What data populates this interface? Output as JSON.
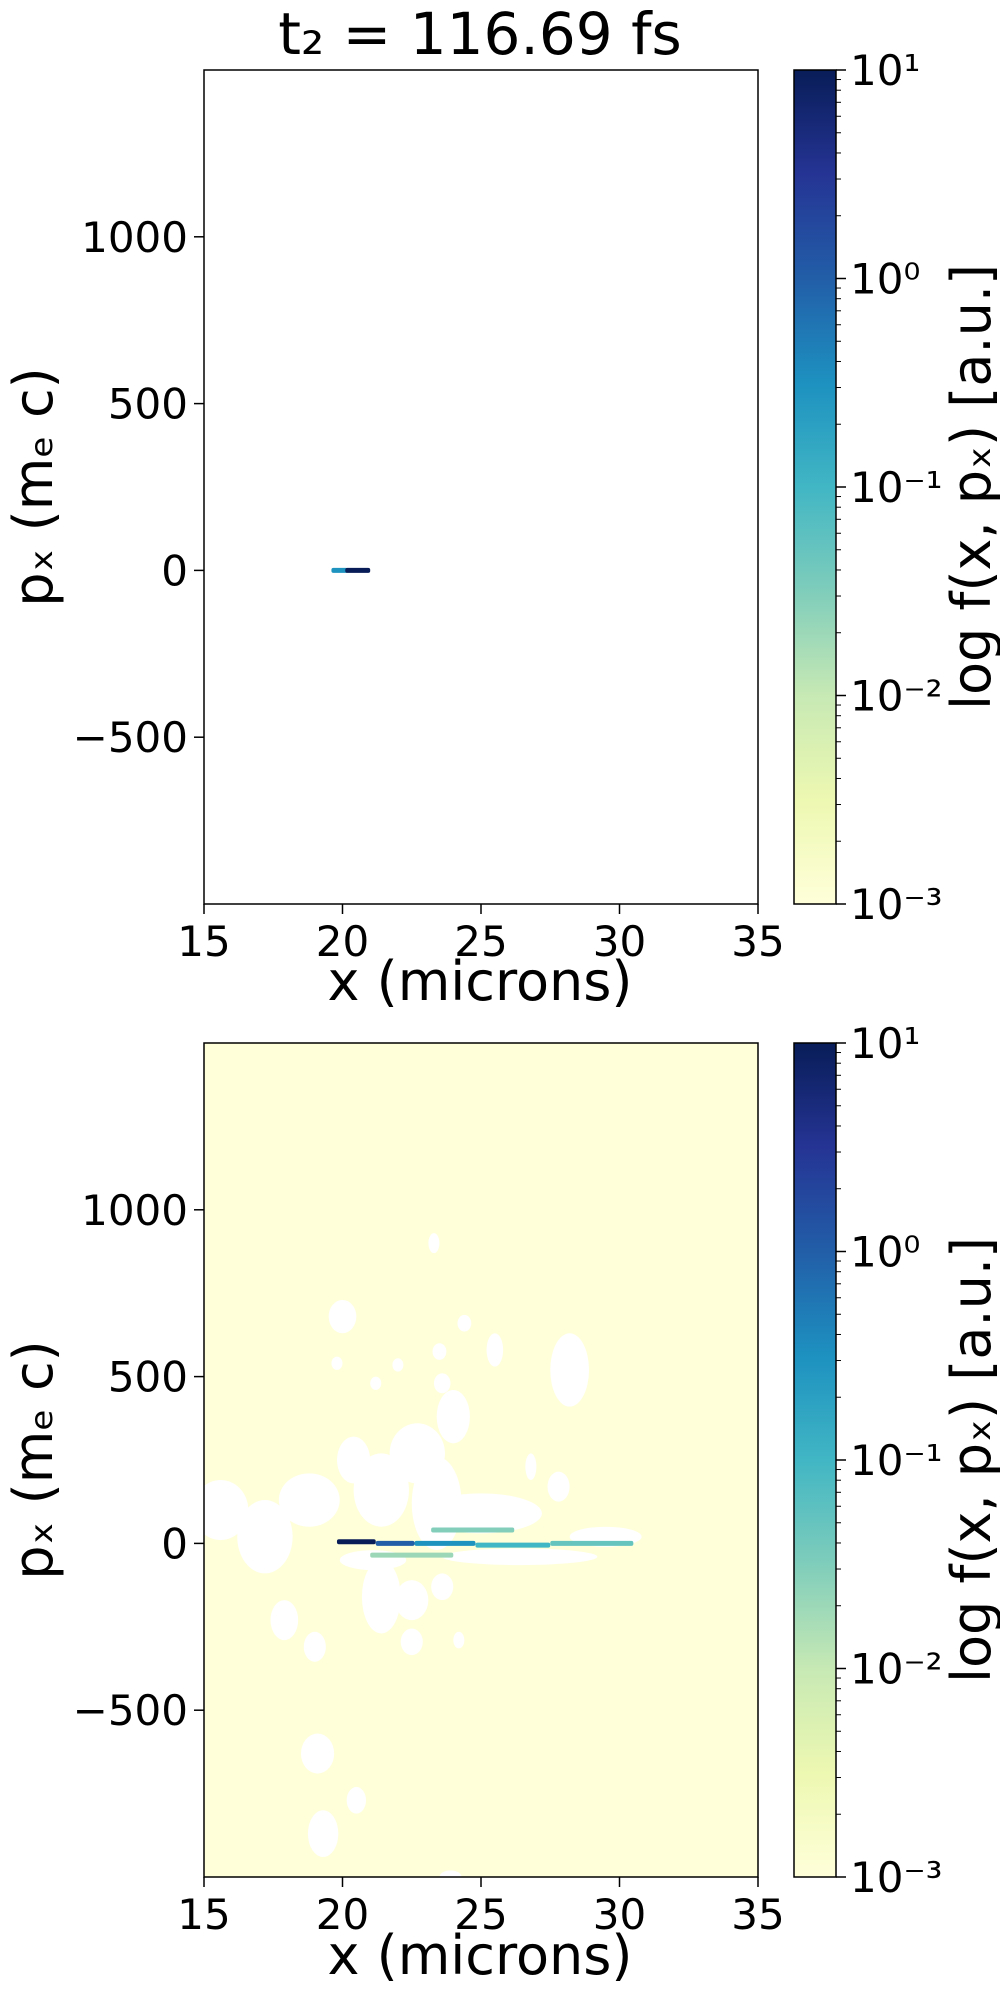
{
  "figure_title": "t₂ = 116.69 fs",
  "colors": {
    "background": "#ffffff",
    "frame": "#000000",
    "cmap": [
      "#081d58",
      "#253494",
      "#225ea8",
      "#1d91c0",
      "#41b6c4",
      "#7fcdbb",
      "#c7e9b4",
      "#edf8b1",
      "#ffffd9"
    ]
  },
  "chart_data": [
    {
      "type": "heatmap",
      "title": "t₂ = 116.69 fs",
      "xlabel": "x (microns)",
      "ylabel": "pₓ (mₑ c)",
      "colorbar_label": "log f(x, pₓ) [a.u.]",
      "colorbar_scale": "log",
      "colorbar_range": [
        0.001,
        10
      ],
      "colorbar_ticks": [
        "10¹",
        "10⁰",
        "10⁻¹",
        "10⁻²",
        "10⁻³"
      ],
      "xlim": [
        15,
        35
      ],
      "ylim": [
        -1000,
        1500
      ],
      "xticks": [
        "15",
        "20",
        "25",
        "30",
        "35"
      ],
      "yticks": [
        "−500",
        "0",
        "500",
        "1000"
      ],
      "background_fill": "none",
      "grid": false,
      "features": [
        {
          "kind": "streak",
          "x0": 19.6,
          "x1": 20.2,
          "y": 0,
          "level": 0.3
        },
        {
          "kind": "streak",
          "x0": 20.1,
          "x1": 21.0,
          "y": 0,
          "level": 10
        }
      ]
    },
    {
      "type": "heatmap",
      "title": "",
      "xlabel": "x (microns)",
      "ylabel": "pₓ (mₑ c)",
      "colorbar_label": "log f(x, pₓ) [a.u.]",
      "colorbar_scale": "log",
      "colorbar_range": [
        0.001,
        10
      ],
      "colorbar_ticks": [
        "10¹",
        "10⁰",
        "10⁻¹",
        "10⁻²",
        "10⁻³"
      ],
      "xlim": [
        15,
        35
      ],
      "ylim": [
        -1000,
        1500
      ],
      "xticks": [
        "15",
        "20",
        "25",
        "30",
        "35"
      ],
      "yticks": [
        "−500",
        "0",
        "500",
        "1000"
      ],
      "background_fill": 0.001,
      "grid": false,
      "features": [
        {
          "kind": "blob",
          "x": 15.6,
          "y": 100,
          "rx": 1.0,
          "ry": 90
        },
        {
          "kind": "blob",
          "x": 17.2,
          "y": 20,
          "rx": 1.0,
          "ry": 110
        },
        {
          "kind": "blob",
          "x": 17.9,
          "y": -230,
          "rx": 0.5,
          "ry": 60
        },
        {
          "kind": "blob",
          "x": 19.0,
          "y": -310,
          "rx": 0.4,
          "ry": 45
        },
        {
          "kind": "blob",
          "x": 18.8,
          "y": 130,
          "rx": 1.1,
          "ry": 80
        },
        {
          "kind": "blob",
          "x": 20.4,
          "y": 250,
          "rx": 0.6,
          "ry": 70
        },
        {
          "kind": "blob",
          "x": 21.4,
          "y": 160,
          "rx": 1.0,
          "ry": 110
        },
        {
          "kind": "blob",
          "x": 22.7,
          "y": 270,
          "rx": 1.0,
          "ry": 90
        },
        {
          "kind": "blob",
          "x": 23.4,
          "y": 120,
          "rx": 0.9,
          "ry": 140
        },
        {
          "kind": "blob",
          "x": 24.0,
          "y": 380,
          "rx": 0.6,
          "ry": 80
        },
        {
          "kind": "blob",
          "x": 24.4,
          "y": 660,
          "rx": 0.25,
          "ry": 25
        },
        {
          "kind": "blob",
          "x": 23.5,
          "y": 575,
          "rx": 0.25,
          "ry": 25
        },
        {
          "kind": "blob",
          "x": 23.6,
          "y": 480,
          "rx": 0.3,
          "ry": 30
        },
        {
          "kind": "blob",
          "x": 22.0,
          "y": 535,
          "rx": 0.2,
          "ry": 20
        },
        {
          "kind": "blob",
          "x": 21.2,
          "y": 480,
          "rx": 0.2,
          "ry": 20
        },
        {
          "kind": "blob",
          "x": 23.3,
          "y": 900,
          "rx": 0.2,
          "ry": 30
        },
        {
          "kind": "blob",
          "x": 25.5,
          "y": 580,
          "rx": 0.3,
          "ry": 50
        },
        {
          "kind": "blob",
          "x": 28.2,
          "y": 520,
          "rx": 0.7,
          "ry": 110
        },
        {
          "kind": "blob",
          "x": 26.8,
          "y": 230,
          "rx": 0.2,
          "ry": 40
        },
        {
          "kind": "blob",
          "x": 27.8,
          "y": 170,
          "rx": 0.4,
          "ry": 45
        },
        {
          "kind": "blob",
          "x": 20.0,
          "y": 680,
          "rx": 0.5,
          "ry": 50
        },
        {
          "kind": "blob",
          "x": 19.8,
          "y": 540,
          "rx": 0.2,
          "ry": 20
        },
        {
          "kind": "blob",
          "x": 25.0,
          "y": 90,
          "rx": 2.2,
          "ry": 60
        },
        {
          "kind": "blob",
          "x": 29.5,
          "y": 20,
          "rx": 1.3,
          "ry": 30
        },
        {
          "kind": "blob",
          "x": 21.4,
          "y": -160,
          "rx": 0.7,
          "ry": 110
        },
        {
          "kind": "blob",
          "x": 22.5,
          "y": -170,
          "rx": 0.6,
          "ry": 60
        },
        {
          "kind": "blob",
          "x": 23.6,
          "y": -130,
          "rx": 0.4,
          "ry": 40
        },
        {
          "kind": "blob",
          "x": 22.5,
          "y": -295,
          "rx": 0.4,
          "ry": 40
        },
        {
          "kind": "blob",
          "x": 24.2,
          "y": -290,
          "rx": 0.2,
          "ry": 25
        },
        {
          "kind": "blob",
          "x": 19.1,
          "y": -630,
          "rx": 0.6,
          "ry": 60
        },
        {
          "kind": "blob",
          "x": 19.3,
          "y": -870,
          "rx": 0.55,
          "ry": 70
        },
        {
          "kind": "blob",
          "x": 20.5,
          "y": -770,
          "rx": 0.35,
          "ry": 40
        },
        {
          "kind": "blob",
          "x": 21.1,
          "y": -50,
          "rx": 1.2,
          "ry": 30
        },
        {
          "kind": "blob",
          "x": 26.4,
          "y": -40,
          "rx": 2.8,
          "ry": 25
        },
        {
          "kind": "blob",
          "x": 23.9,
          "y": -1000,
          "rx": 0.4,
          "ry": 20
        },
        {
          "kind": "streak",
          "x0": 19.8,
          "x1": 21.2,
          "y": 5,
          "level": 10
        },
        {
          "kind": "streak",
          "x0": 21.2,
          "x1": 22.6,
          "y": 0,
          "level": 1
        },
        {
          "kind": "streak",
          "x0": 22.6,
          "x1": 24.8,
          "y": 0,
          "level": 0.3
        },
        {
          "kind": "streak",
          "x0": 24.8,
          "x1": 27.5,
          "y": -5,
          "level": 0.1
        },
        {
          "kind": "streak",
          "x0": 27.5,
          "x1": 30.5,
          "y": 0,
          "level": 0.05
        },
        {
          "kind": "streak",
          "x0": 23.2,
          "x1": 26.2,
          "y": 40,
          "level": 0.03
        },
        {
          "kind": "streak",
          "x0": 21.0,
          "x1": 24.0,
          "y": -35,
          "level": 0.02
        }
      ]
    }
  ]
}
